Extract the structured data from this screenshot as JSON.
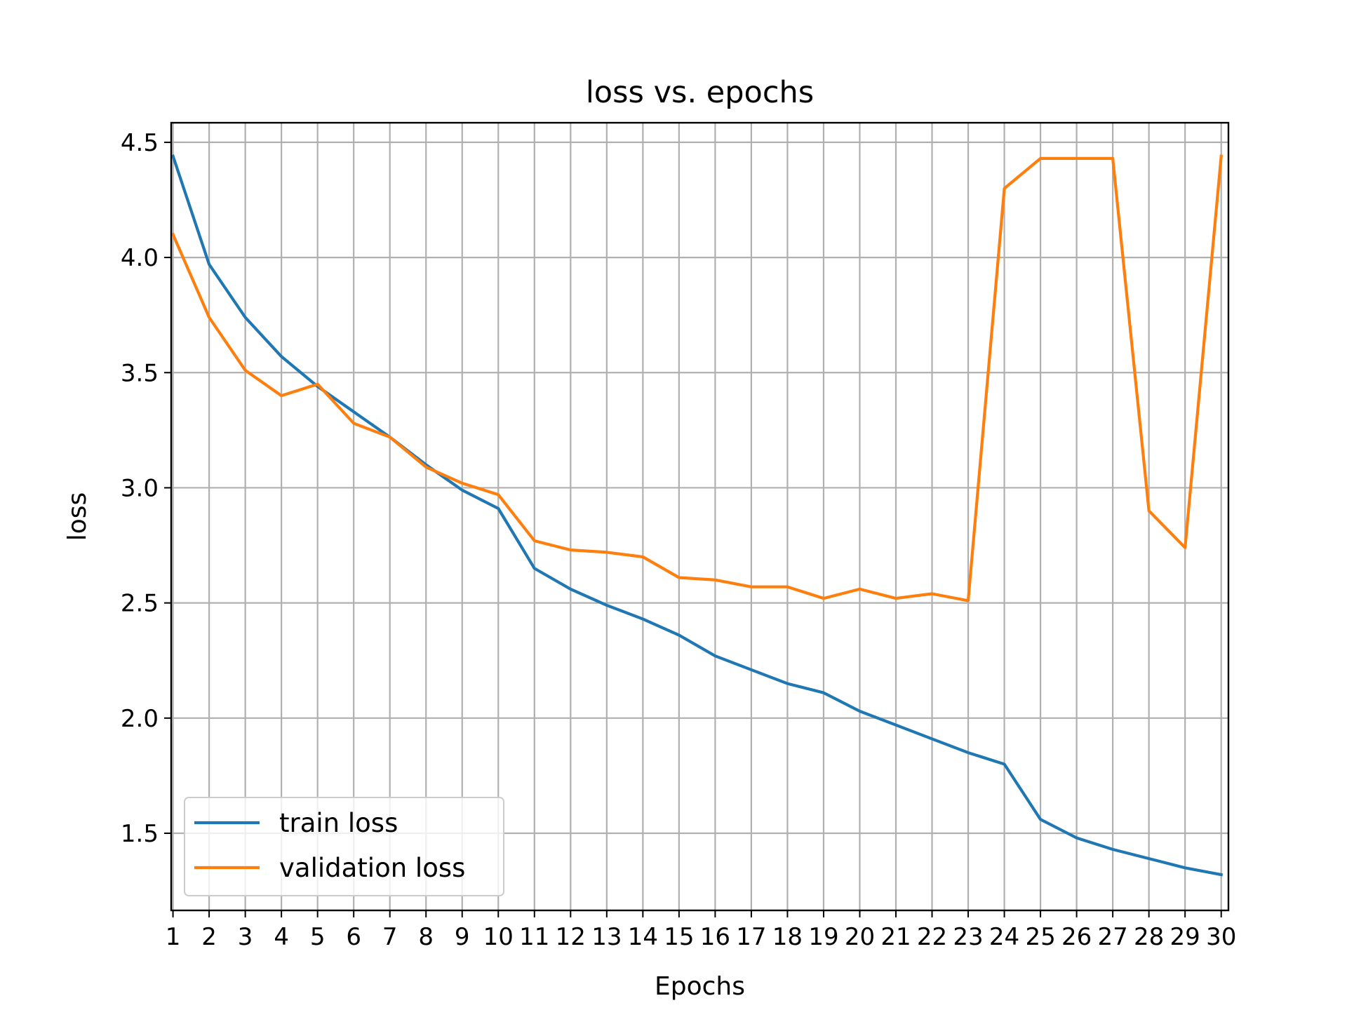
{
  "chart_data": {
    "type": "line",
    "title": "loss vs. epochs",
    "xlabel": "Epochs",
    "ylabel": "loss",
    "x": [
      1,
      2,
      3,
      4,
      5,
      6,
      7,
      8,
      9,
      10,
      11,
      12,
      13,
      14,
      15,
      16,
      17,
      18,
      19,
      20,
      21,
      22,
      23,
      24,
      25,
      26,
      27,
      28,
      29,
      30
    ],
    "x_tick_labels": [
      "1",
      "2",
      "3",
      "4",
      "5",
      "6",
      "7",
      "8",
      "9",
      "10",
      "11",
      "12",
      "13",
      "14",
      "15",
      "16",
      "17",
      "18",
      "19",
      "20",
      "21",
      "22",
      "23",
      "24",
      "25",
      "26",
      "27",
      "28",
      "29",
      "30"
    ],
    "y_ticks": [
      1.5,
      2.0,
      2.5,
      3.0,
      3.5,
      4.0,
      4.5
    ],
    "y_tick_labels": [
      "1.5",
      "2.0",
      "2.5",
      "3.0",
      "3.5",
      "4.0",
      "4.5"
    ],
    "xlim": [
      0.95,
      30.2
    ],
    "ylim": [
      1.165,
      4.585
    ],
    "grid": true,
    "legend_position": "lower-left",
    "series": [
      {
        "name": "train loss",
        "color": "#1f77b4",
        "values": [
          4.44,
          3.97,
          3.74,
          3.57,
          3.44,
          3.33,
          3.22,
          3.1,
          2.99,
          2.91,
          2.65,
          2.56,
          2.49,
          2.43,
          2.36,
          2.27,
          2.21,
          2.15,
          2.11,
          2.03,
          1.97,
          1.91,
          1.85,
          1.8,
          1.56,
          1.48,
          1.43,
          1.39,
          1.35,
          1.32
        ]
      },
      {
        "name": "validation loss",
        "color": "#ff7f0e",
        "values": [
          4.1,
          3.74,
          3.51,
          3.4,
          3.45,
          3.28,
          3.22,
          3.09,
          3.02,
          2.97,
          2.77,
          2.73,
          2.72,
          2.7,
          2.61,
          2.6,
          2.57,
          2.57,
          2.52,
          2.56,
          2.52,
          2.54,
          2.51,
          4.3,
          4.43,
          4.43,
          4.43,
          2.9,
          2.74,
          4.44
        ]
      }
    ]
  }
}
